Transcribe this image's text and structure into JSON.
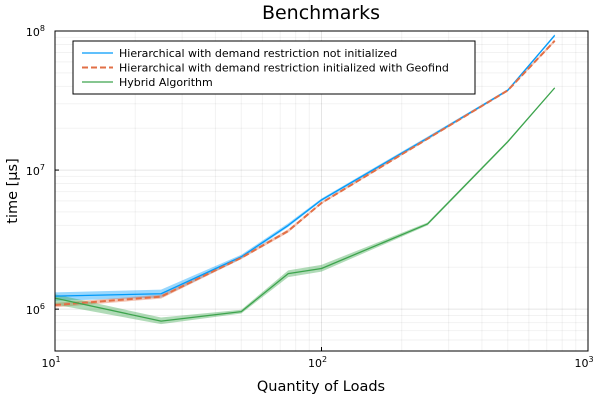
{
  "chart_data": {
    "type": "line",
    "title": "Benchmarks",
    "xlabel": "Quantity of Loads",
    "ylabel": "time [μs]",
    "xscale": "log",
    "yscale": "log",
    "xlim": [
      10,
      1000
    ],
    "ylim": [
      500000,
      100000000
    ],
    "grid": true,
    "legend_position": "top-left",
    "x_ticks": [
      {
        "value": 10,
        "base": "10",
        "exp": "1"
      },
      {
        "value": 100,
        "base": "10",
        "exp": "2"
      },
      {
        "value": 1000,
        "base": "10",
        "exp": "3"
      }
    ],
    "y_ticks": [
      {
        "value": 1000000,
        "base": "10",
        "exp": "6"
      },
      {
        "value": 10000000,
        "base": "10",
        "exp": "7"
      },
      {
        "value": 100000000,
        "base": "10",
        "exp": "8"
      }
    ],
    "series": [
      {
        "name": "Hierarchical with demand restriction not initialized",
        "color": "#009AFA",
        "dash": "solid",
        "x": [
          10,
          25,
          50,
          75,
          100,
          250,
          500,
          750
        ],
        "y": [
          1240000,
          1290000,
          2380000,
          4000000,
          6100000,
          17000000,
          37500000,
          93000000
        ],
        "band_low": [
          1150000,
          1210000,
          2300000,
          3900000,
          5950000,
          16600000,
          36800000,
          91000000
        ],
        "band_high": [
          1320000,
          1380000,
          2460000,
          4150000,
          6250000,
          17400000,
          38200000,
          95000000
        ]
      },
      {
        "name": "Hierarchical with demand restriction initialized with Geofind",
        "color": "#E26F46",
        "dash": "dashed",
        "x": [
          10,
          25,
          50,
          75,
          100,
          250,
          500,
          750
        ],
        "y": [
          1070000,
          1230000,
          2340000,
          3650000,
          5800000,
          16800000,
          37400000,
          85000000
        ],
        "band_low": [
          1030000,
          1190000,
          2290000,
          3550000,
          5700000,
          16500000,
          36800000,
          83000000
        ],
        "band_high": [
          1110000,
          1270000,
          2390000,
          3750000,
          5900000,
          17100000,
          38000000,
          87000000
        ]
      },
      {
        "name": "Hybrid Algorithm",
        "color": "#3DA44D",
        "dash": "solid",
        "x": [
          10,
          25,
          50,
          75,
          100,
          250,
          500,
          750
        ],
        "y": [
          1200000,
          820000,
          960000,
          1800000,
          1960000,
          4100000,
          16000000,
          39000000
        ],
        "band_low": [
          1080000,
          780000,
          930000,
          1700000,
          1860000,
          4000000,
          15700000,
          38500000
        ],
        "band_high": [
          1280000,
          870000,
          990000,
          1900000,
          2080000,
          4200000,
          16300000,
          39500000
        ]
      }
    ]
  }
}
